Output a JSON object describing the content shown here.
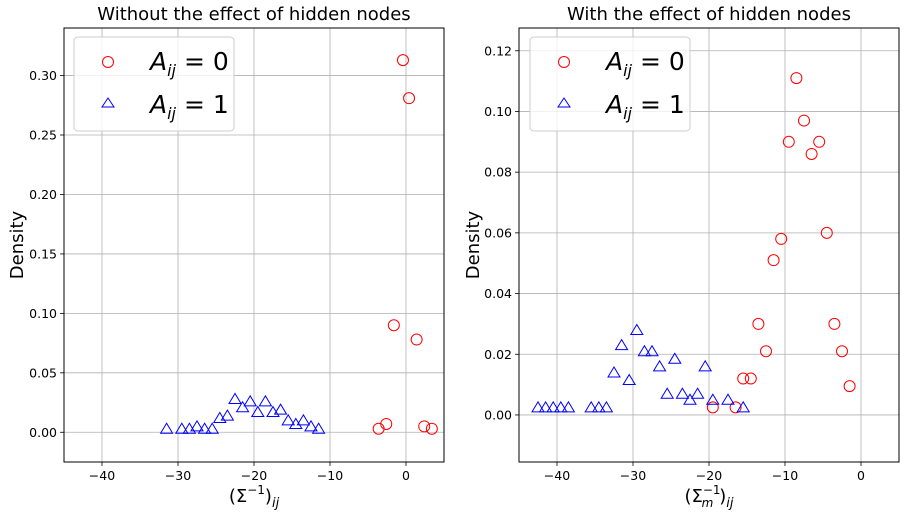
{
  "figure": {
    "chart_data": [
      {
        "type": "scatter",
        "title": "Without the effect of hidden nodes",
        "ylabel": "Density",
        "xlabel_parts": [
          "(Σ",
          "−1",
          ")",
          "ij"
        ],
        "xlim": [
          -45,
          5
        ],
        "ylim": [
          -0.025,
          0.34
        ],
        "xticks": [
          -40,
          -30,
          -20,
          -10,
          0
        ],
        "yticks": [
          0.0,
          0.05,
          0.1,
          0.15,
          0.2,
          0.25,
          0.3
        ],
        "ytick_labels": [
          "0.00",
          "0.05",
          "0.10",
          "0.15",
          "0.20",
          "0.25",
          "0.30"
        ],
        "grid": true,
        "legend_position": "top-left",
        "series": [
          {
            "label_parts": [
              "A",
              "ij",
              " = 0"
            ],
            "marker": "circle",
            "color": "#ff0000",
            "points": [
              [
                -0.4,
                0.313
              ],
              [
                0.4,
                0.281
              ],
              [
                -1.6,
                0.09
              ],
              [
                1.4,
                0.078
              ],
              [
                -2.6,
                0.007
              ],
              [
                -3.6,
                0.003
              ],
              [
                2.4,
                0.005
              ],
              [
                3.4,
                0.003
              ]
            ]
          },
          {
            "label_parts": [
              "A",
              "ij",
              " = 1"
            ],
            "marker": "triangle",
            "color": "#0000ff",
            "points": [
              [
                -31.5,
                0.003
              ],
              [
                -29.5,
                0.003
              ],
              [
                -28.5,
                0.003
              ],
              [
                -27.5,
                0.005
              ],
              [
                -26.5,
                0.003
              ],
              [
                -25.5,
                0.003
              ],
              [
                -24.5,
                0.012
              ],
              [
                -23.5,
                0.014
              ],
              [
                -22.5,
                0.028
              ],
              [
                -21.5,
                0.021
              ],
              [
                -20.5,
                0.026
              ],
              [
                -19.5,
                0.017
              ],
              [
                -18.5,
                0.026
              ],
              [
                -17.5,
                0.017
              ],
              [
                -16.5,
                0.019
              ],
              [
                -15.5,
                0.01
              ],
              [
                -14.5,
                0.007
              ],
              [
                -13.5,
                0.01
              ],
              [
                -12.5,
                0.005
              ],
              [
                -11.5,
                0.003
              ]
            ]
          }
        ]
      },
      {
        "type": "scatter",
        "title": "With the effect of hidden nodes",
        "ylabel": "Density",
        "xlabel_parts": [
          "(Σ",
          "−1",
          ")",
          "ij",
          "m"
        ],
        "xlim": [
          -45,
          5
        ],
        "ylim": [
          -0.0155,
          0.1275
        ],
        "xticks": [
          -40,
          -30,
          -20,
          -10,
          0
        ],
        "yticks": [
          0.0,
          0.02,
          0.04,
          0.06,
          0.08,
          0.1,
          0.12
        ],
        "ytick_labels": [
          "0.00",
          "0.02",
          "0.04",
          "0.06",
          "0.08",
          "0.10",
          "0.12"
        ],
        "grid": true,
        "legend_position": "top-left",
        "series": [
          {
            "label_parts": [
              "A",
              "ij",
              " = 0"
            ],
            "marker": "circle",
            "color": "#ff0000",
            "points": [
              [
                -8.5,
                0.111
              ],
              [
                -7.5,
                0.097
              ],
              [
                -9.5,
                0.09
              ],
              [
                -5.5,
                0.09
              ],
              [
                -6.5,
                0.086
              ],
              [
                -4.5,
                0.06
              ],
              [
                -10.5,
                0.058
              ],
              [
                -11.5,
                0.051
              ],
              [
                -13.5,
                0.03
              ],
              [
                -3.5,
                0.03
              ],
              [
                -12.5,
                0.021
              ],
              [
                -2.5,
                0.021
              ],
              [
                -15.5,
                0.012
              ],
              [
                -14.5,
                0.012
              ],
              [
                -1.5,
                0.0095
              ],
              [
                -19.5,
                0.0025
              ],
              [
                -16.5,
                0.0025
              ]
            ]
          },
          {
            "label_parts": [
              "A",
              "ij",
              " = 1"
            ],
            "marker": "triangle",
            "color": "#0000ff",
            "points": [
              [
                -42.5,
                0.0025
              ],
              [
                -41.5,
                0.0025
              ],
              [
                -40.5,
                0.0025
              ],
              [
                -39.5,
                0.0025
              ],
              [
                -38.5,
                0.0025
              ],
              [
                -35.5,
                0.0025
              ],
              [
                -34.5,
                0.0025
              ],
              [
                -33.5,
                0.0025
              ],
              [
                -32.5,
                0.014
              ],
              [
                -31.5,
                0.023
              ],
              [
                -30.5,
                0.0115
              ],
              [
                -29.5,
                0.028
              ],
              [
                -28.5,
                0.021
              ],
              [
                -27.5,
                0.021
              ],
              [
                -26.5,
                0.016
              ],
              [
                -25.5,
                0.007
              ],
              [
                -24.5,
                0.0185
              ],
              [
                -23.5,
                0.007
              ],
              [
                -22.5,
                0.005
              ],
              [
                -21.5,
                0.007
              ],
              [
                -20.5,
                0.016
              ],
              [
                -19.5,
                0.005
              ],
              [
                -17.5,
                0.005
              ],
              [
                -15.5,
                0.0025
              ]
            ]
          }
        ]
      }
    ]
  }
}
